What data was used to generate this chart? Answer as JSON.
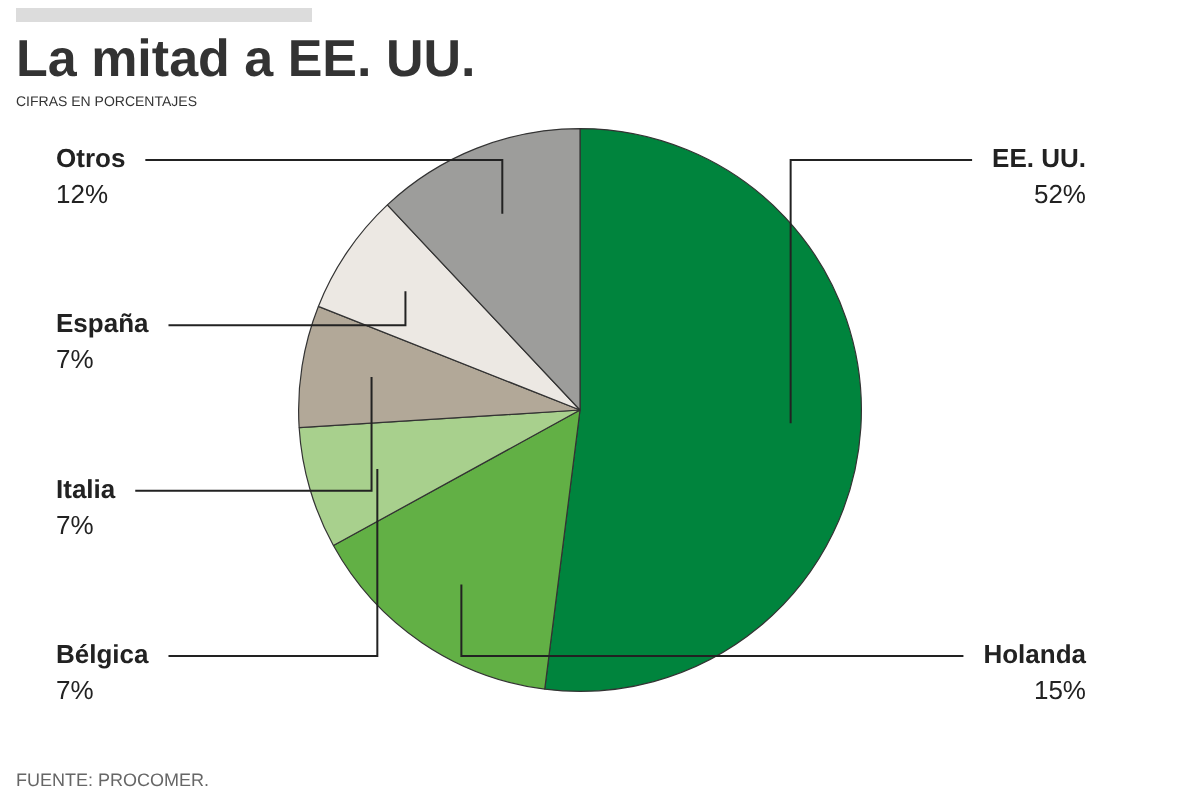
{
  "chart_data": {
    "type": "pie",
    "title": "La mitad a EE. UU.",
    "subtitle": "CIFRAS EN PORCENTAJES",
    "categories": [
      "EE. UU.",
      "Holanda",
      "Bélgica",
      "Italia",
      "España",
      "Otros"
    ],
    "values": [
      52,
      15,
      7,
      7,
      7,
      12
    ],
    "colors": [
      "#00843d",
      "#62b045",
      "#a8d08d",
      "#b2a898",
      "#ece8e3",
      "#9d9d9b"
    ],
    "value_labels": [
      "52%",
      "15%",
      "7%",
      "7%",
      "7%",
      "12%"
    ],
    "legend": false,
    "annotations": [
      "FUENTE: PROCOMER."
    ]
  }
}
